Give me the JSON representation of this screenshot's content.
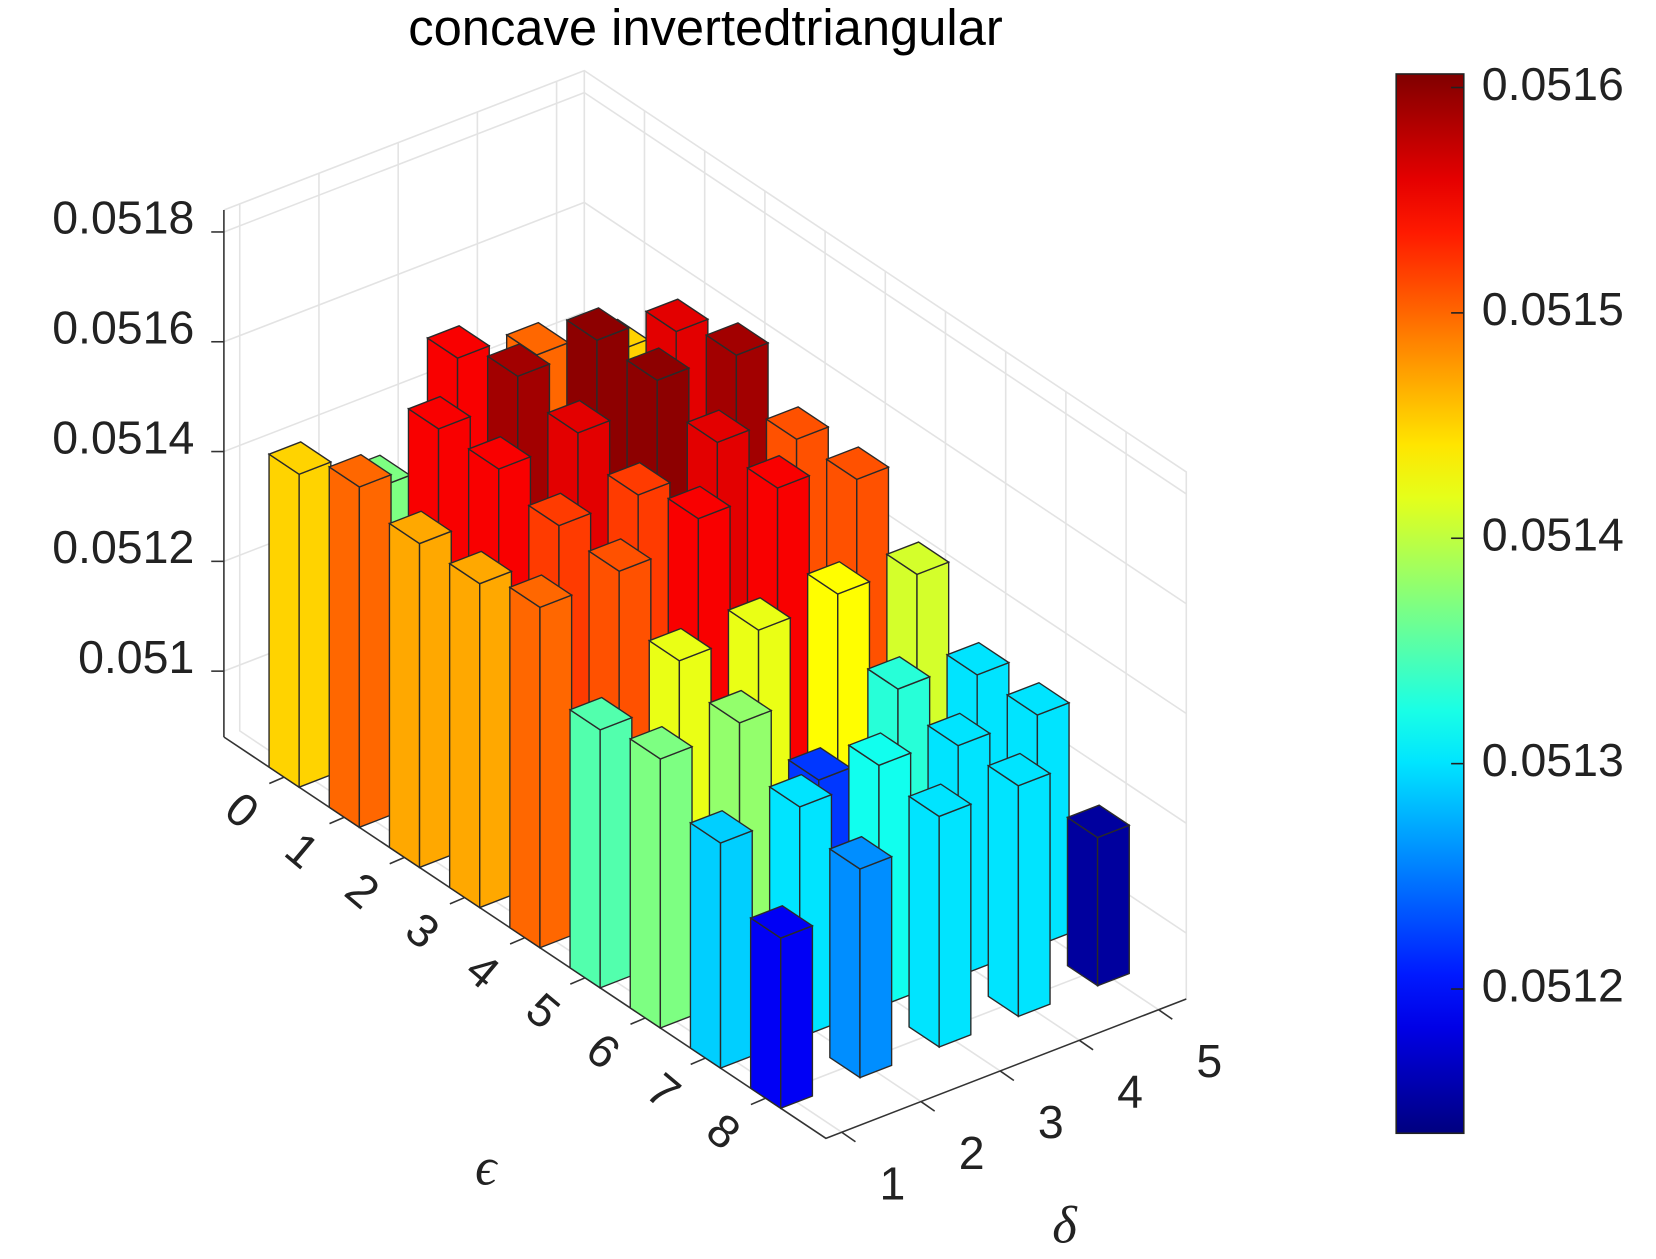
{
  "chart_data": {
    "type": "bar3",
    "title": "concave invertedtriangular",
    "xlabel": "ϵ",
    "ylabel": "δ",
    "xticks": [
      0,
      1,
      2,
      3,
      4,
      5,
      6,
      7,
      8
    ],
    "yticks": [
      1,
      2,
      3,
      4,
      5
    ],
    "values": [
      [
        0.05145,
        0.05137,
        0.05155,
        0.0515,
        0.05145
      ],
      [
        0.0515,
        0.05155,
        0.05159,
        0.0516,
        0.05156
      ],
      [
        0.05147,
        0.05155,
        0.05156,
        0.0516,
        0.05159
      ],
      [
        0.05147,
        0.05152,
        0.05152,
        0.05156,
        0.05151
      ],
      [
        0.0515,
        0.05151,
        0.05155,
        0.05155,
        0.05151
      ],
      [
        0.05135,
        0.05142,
        0.05142,
        0.05143,
        0.05141
      ],
      [
        0.05137,
        0.05138,
        0.05122,
        0.05133,
        0.0513
      ],
      [
        0.05129,
        0.0513,
        0.05132,
        0.0513,
        0.0513
      ],
      [
        0.05119,
        0.05126,
        0.0513,
        0.0513,
        0.05115
      ]
    ],
    "zlim": [
      0.05088,
      0.05184
    ],
    "zticks": [
      0.051,
      0.0512,
      0.0514,
      0.0516,
      0.0518
    ],
    "grid": true,
    "colormap": "jet",
    "clim": [
      0.051136,
      0.051606
    ],
    "colorbar_ticks": [
      0.0512,
      0.0513,
      0.0514,
      0.0515,
      0.0516
    ]
  }
}
